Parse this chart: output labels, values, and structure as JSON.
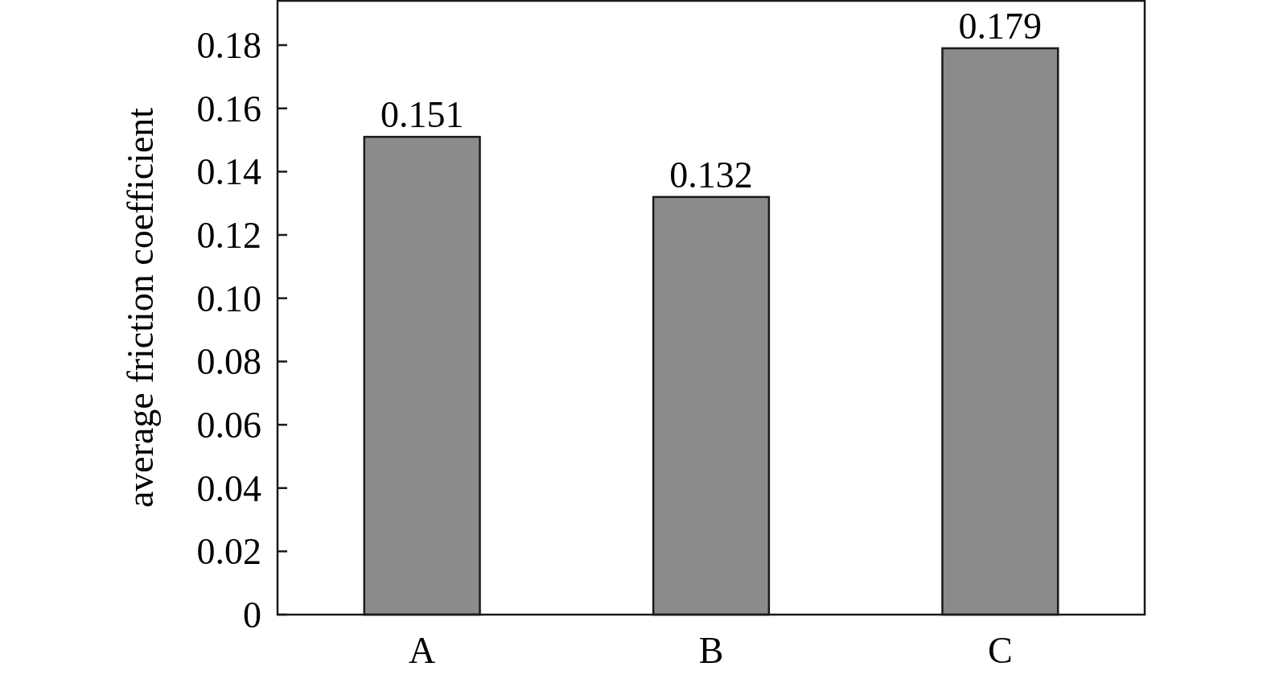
{
  "chart_data": {
    "type": "bar",
    "ylabel": "average friction coefficient",
    "categories": [
      "A",
      "B",
      "C"
    ],
    "values": [
      0.151,
      0.132,
      0.179
    ],
    "color": "#8c8b8b",
    "data_labels": true,
    "ylim": [
      0,
      0.194
    ],
    "yticks": [
      0,
      0.02,
      0.04,
      0.06,
      0.08,
      {
        "value": 0.1,
        "label": "0.10"
      },
      0.12,
      0.14,
      0.16,
      0.18
    ],
    "grid": false
  }
}
